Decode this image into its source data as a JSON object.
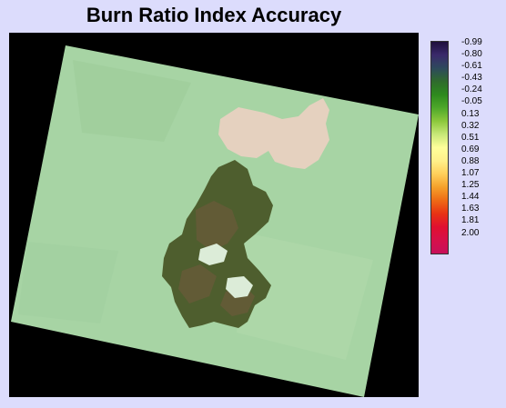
{
  "title": "Burn Ratio Index Accuracy",
  "legend": {
    "labels": [
      "-0.99",
      "-0.80",
      "-0.61",
      "-0.43",
      "-0.24",
      "-0.05",
      "0.13",
      "0.32",
      "0.51",
      "0.69",
      "0.88",
      "1.07",
      "1.25",
      "1.44",
      "1.63",
      "1.81",
      "2.00"
    ],
    "gradient_colors": [
      "#1e0f3c",
      "#3a2a6b",
      "#2e4a5c",
      "#2f6b2c",
      "#2e8a1e",
      "#4ea82a",
      "#8cc83c",
      "#c8e878",
      "#ffff9a",
      "#fff08a",
      "#ffcf5a",
      "#f5a02a",
      "#ee6a16",
      "#e83214",
      "#e01030",
      "#d6104a",
      "#c8105a"
    ]
  },
  "map": {
    "background_color": "#000000",
    "scene_color": "#a7d4a4",
    "burn_scar_color": "#4e5e2e",
    "highlight_color": "#f0d0c4"
  }
}
